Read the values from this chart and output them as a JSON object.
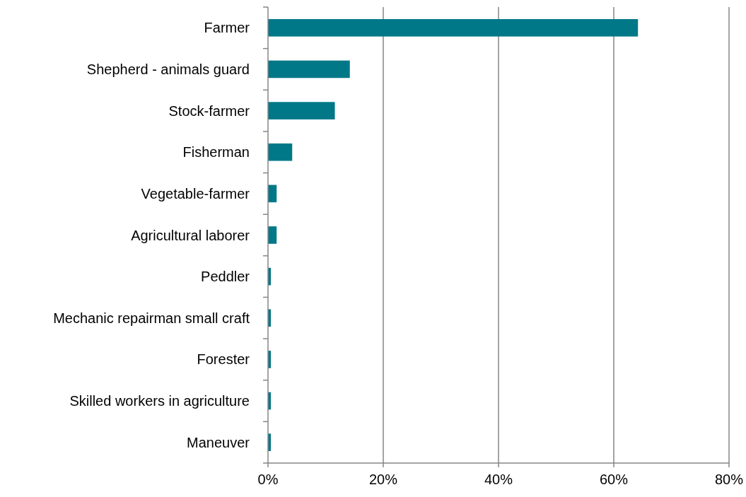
{
  "chart_data": {
    "type": "bar",
    "orientation": "horizontal",
    "categories": [
      "Farmer",
      "Shepherd - animals guard",
      "Stock-farmer",
      "Fisherman",
      "Vegetable-farmer",
      "Agricultural laborer",
      "Peddler",
      "Mechanic repairman small craft",
      "Forester",
      "Skilled workers in agriculture",
      "Maneuver"
    ],
    "values": [
      64.2,
      14.2,
      11.6,
      4.2,
      1.5,
      1.5,
      0.5,
      0.5,
      0.5,
      0.5,
      0.5
    ],
    "color": "#017888",
    "xlim": [
      0,
      80
    ],
    "xticks": [
      {
        "value": 0,
        "label": "0%"
      },
      {
        "value": 20,
        "label": "20%"
      },
      {
        "value": 40,
        "label": "40%"
      },
      {
        "value": 60,
        "label": "60%"
      },
      {
        "value": 80,
        "label": "80%"
      }
    ],
    "grid": "x"
  }
}
